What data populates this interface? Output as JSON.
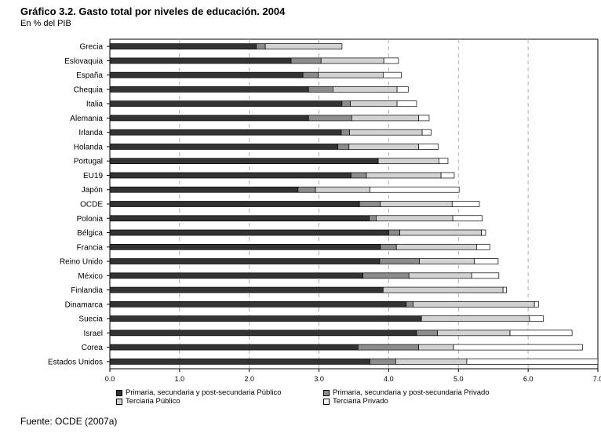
{
  "header": {
    "title": "Gráfico 3.2. Gasto total por niveles de educación. 2004",
    "subtitle": "En % del PIB"
  },
  "footer": {
    "source": "Fuente: OCDE (2007a)"
  },
  "colors": {
    "primaria_publico": "#333333",
    "primaria_privado": "#8c8c8c",
    "terciaria_publico": "#d2d2d2",
    "terciaria_privado": "#ffffff",
    "grid": "#b0b0b0"
  },
  "chart_data": {
    "type": "bar",
    "orientation": "horizontal",
    "stacked": true,
    "title": "Gráfico 3.2. Gasto total por niveles de educación. 2004",
    "subtitle": "En % del PIB",
    "xlim": [
      0,
      7
    ],
    "xticks": [
      "0.0",
      "1.0",
      "2.0",
      "3.0",
      "4.0",
      "5.0",
      "6.0",
      "7.0"
    ],
    "grid": "vertical dashed",
    "legend_position": "bottom",
    "categories": [
      "Grecia",
      "Eslovaquia",
      "España",
      "Chequia",
      "Italia",
      "Alemania",
      "Irlanda",
      "Holanda",
      "Portugal",
      "EU19",
      "Japón",
      "OCDE",
      "Polonia",
      "Bélgica",
      "Francia",
      "Reino Unido",
      "México",
      "Finlandia",
      "Dinamarca",
      "Suecia",
      "Israel",
      "Corea",
      "Estados Unidos"
    ],
    "series": [
      {
        "name": "Primaria, secundaria y post-secundaria Público",
        "color": "#333333",
        "values": [
          2.1,
          2.6,
          2.77,
          2.85,
          3.33,
          2.85,
          3.32,
          3.27,
          3.85,
          3.46,
          2.7,
          3.58,
          3.72,
          4.0,
          3.88,
          3.87,
          3.63,
          3.92,
          4.25,
          4.47,
          4.4,
          3.56,
          3.73
        ]
      },
      {
        "name": "Primaria, secundaria y post-secundaria Privado",
        "color": "#8c8c8c",
        "values": [
          0.13,
          0.43,
          0.22,
          0.35,
          0.12,
          0.62,
          0.12,
          0.16,
          0.0,
          0.22,
          0.25,
          0.3,
          0.1,
          0.16,
          0.23,
          0.57,
          0.66,
          0.0,
          0.1,
          0.0,
          0.3,
          0.87,
          0.37
        ]
      },
      {
        "name": "Terciaria Público",
        "color": "#d2d2d2",
        "values": [
          1.1,
          0.9,
          0.93,
          0.92,
          0.67,
          0.96,
          1.04,
          1.0,
          0.87,
          1.07,
          0.78,
          1.03,
          1.1,
          1.17,
          1.15,
          0.79,
          0.9,
          1.72,
          1.74,
          1.55,
          1.04,
          0.5,
          1.02
        ]
      },
      {
        "name": "Terciaria Privado",
        "color": "#ffffff",
        "values": [
          0.0,
          0.21,
          0.26,
          0.16,
          0.28,
          0.15,
          0.13,
          0.28,
          0.13,
          0.19,
          1.28,
          0.39,
          0.42,
          0.06,
          0.19,
          0.34,
          0.39,
          0.05,
          0.06,
          0.2,
          0.89,
          1.85,
          1.88
        ]
      }
    ]
  },
  "legend": [
    {
      "label": "Primaria, secundaria y post-secundaria Público",
      "color": "#333333"
    },
    {
      "label": "Primaria, secundaria y post-secundaria Privado",
      "color": "#8c8c8c"
    },
    {
      "label": "Terciaria Público",
      "color": "#d2d2d2"
    },
    {
      "label": "Terciaria Privado",
      "color": "#ffffff"
    }
  ]
}
